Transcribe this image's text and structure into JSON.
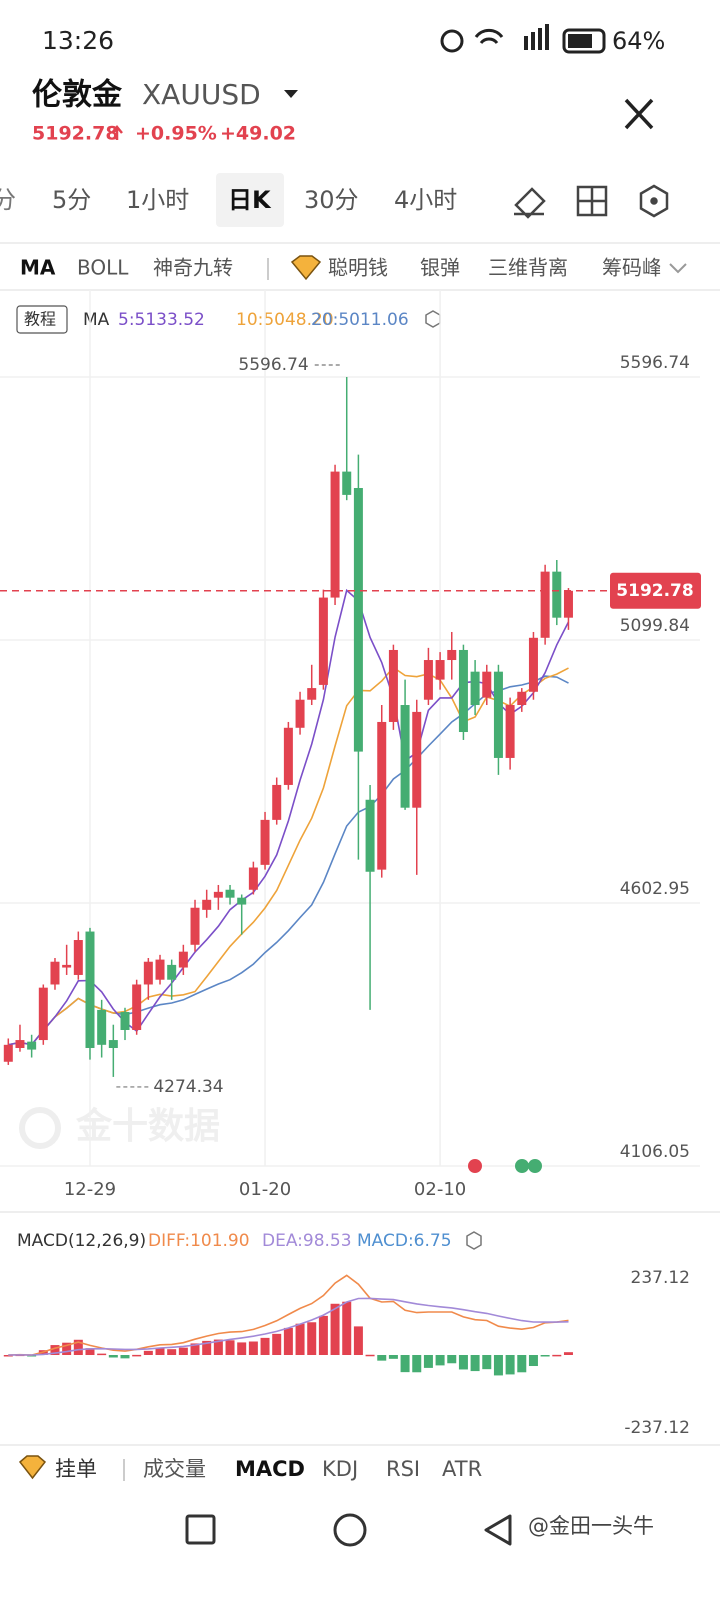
{
  "status_bar": {
    "time": "13:26",
    "battery": "64%"
  },
  "header": {
    "name": "伦敦金",
    "symbol": "XAUUSD",
    "price": "5192.78",
    "change_pct": "+0.95%",
    "change": "+49.02"
  },
  "period_tabs": [
    "分",
    "5分",
    "1小时",
    "日K",
    "30分",
    "4小时"
  ],
  "indicator_tabs": [
    "MA",
    "BOLL",
    "神奇九转",
    "聪明钱",
    "银弹",
    "三维背离",
    "筹码峰"
  ],
  "ma_legend": {
    "tutorial": "教程",
    "label": "MA",
    "ma5": "5:5133.52",
    "ma10": "10:5048.20",
    "ma20": "20:5011.06"
  },
  "chart_data": {
    "type": "candlestick",
    "categories": [
      null,
      null,
      null,
      null,
      null,
      null,
      null,
      "12-29",
      null,
      null,
      null,
      null,
      null,
      null,
      null,
      null,
      null,
      null,
      null,
      null,
      null,
      null,
      "01-20",
      null,
      null,
      null,
      null,
      null,
      null,
      null,
      null,
      null,
      null,
      null,
      null,
      null,
      null,
      "02-10",
      null,
      null,
      null,
      null,
      null,
      null,
      null,
      null,
      null,
      null,
      null
    ],
    "open": [
      4303,
      4329,
      4341,
      4344,
      4449,
      4481,
      4467,
      4549,
      4401,
      4344,
      4397,
      4363,
      4449,
      4458,
      4486,
      4481,
      4524,
      4590,
      4613,
      4628,
      4613,
      4628,
      4675,
      4760,
      4826,
      4934,
      4987,
      5015,
      5180,
      5418,
      5387,
      4798,
      4666,
      4945,
      4977,
      4783,
      4987,
      5025,
      5062,
      5081,
      5040,
      4991,
      5040,
      4877,
      4977,
      5002,
      5104,
      5229,
      5142
    ],
    "high": [
      4347,
      4373,
      4354,
      4449,
      4499,
      4524,
      4549,
      4556,
      4420,
      4373,
      4405,
      4458,
      4499,
      4505,
      4496,
      4524,
      4609,
      4628,
      4637,
      4637,
      4619,
      4681,
      4775,
      4840,
      4945,
      5002,
      5053,
      5195,
      5431,
      5596.74,
      5450,
      4826,
      4977,
      5091,
      5025,
      4987,
      5085,
      5077,
      5115,
      5091,
      5062,
      5053,
      5053,
      4991,
      5009,
      5115,
      5242,
      5251,
      5198
    ],
    "low": [
      4297,
      4322,
      4311,
      4335,
      4439,
      4467,
      4458,
      4307,
      4311,
      4274.34,
      4344,
      4354,
      4420,
      4449,
      4420,
      4467,
      4511,
      4575,
      4590,
      4600,
      4543,
      4619,
      4666,
      4751,
      4817,
      4921,
      4977,
      5006,
      5166,
      5364,
      4685,
      4401,
      4651,
      4930,
      4779,
      4656,
      4977,
      5006,
      5025,
      4911,
      4958,
      4977,
      4845,
      4855,
      4964,
      4987,
      5091,
      5128,
      5119
    ],
    "close": [
      4335,
      4344,
      4326,
      4443,
      4492,
      4486,
      4533,
      4329,
      4335,
      4329,
      4363,
      4449,
      4492,
      4496,
      4458,
      4511,
      4594,
      4609,
      4624,
      4613,
      4600,
      4670,
      4760,
      4826,
      4934,
      4987,
      5009,
      5180,
      5418,
      5374,
      4889,
      4662,
      4945,
      5081,
      4783,
      4964,
      5062,
      5062,
      5081,
      4926,
      4977,
      5040,
      4877,
      4977,
      5002,
      5104,
      5229,
      5142,
      5192.78
    ],
    "up_color": "#e2424f",
    "down_color": "#45ad72",
    "ylim": [
      4106.05,
      5596.74
    ],
    "yticks": [
      4106.05,
      4602.95,
      5099.84,
      5596.74
    ],
    "grid": true
  },
  "macd_panel": {
    "title": "MACD(12,26,9)",
    "diff": "DIFF:101.90",
    "dea": "DEA:98.53",
    "macd": "MACD:6.75",
    "ylim": [
      -237.12,
      237.12
    ],
    "yticks": [
      237.12,
      -237.12
    ]
  },
  "bottom_tabs": [
    "挂单",
    "成交量",
    "MACD",
    "KDJ",
    "RSI",
    "ATR"
  ],
  "watermark": "金十数据",
  "credit": "@金田一头牛"
}
